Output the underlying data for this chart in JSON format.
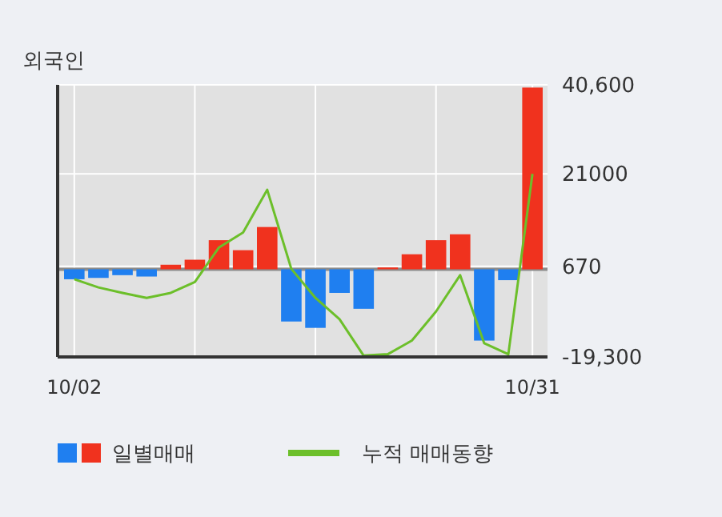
{
  "chart_data": {
    "type": "bar",
    "title": "외국인",
    "categories": [
      "10/02",
      null,
      null,
      null,
      null,
      null,
      null,
      null,
      null,
      null,
      null,
      null,
      null,
      null,
      null,
      null,
      null,
      null,
      null,
      "10/31"
    ],
    "series": [
      {
        "name": "일별매매",
        "colors": [
          "#1f7ff0",
          "#1f7ff0",
          "#1f7ff0",
          "#1f7ff0",
          "#f0321e",
          "#f0321e",
          "#f0321e",
          "#f0321e",
          "#f0321e",
          "#1f7ff0",
          "#1f7ff0",
          "#1f7ff0",
          "#1f7ff0",
          "#f0321e",
          "#f0321e",
          "#f0321e",
          "#f0321e",
          "#1f7ff0",
          "#1f7ff0",
          "#f0321e"
        ],
        "values": [
          -2200,
          -1900,
          -1300,
          -1600,
          1000,
          2100,
          6400,
          4200,
          9300,
          -11500,
          -12900,
          -5200,
          -8700,
          400,
          3300,
          6400,
          7700,
          -15700,
          -2400,
          40000
        ]
      },
      {
        "name": "누적 매매동향",
        "type": "line",
        "color": "#6cbf2a",
        "values": [
          -2200,
          -4000,
          -5200,
          -6300,
          -5200,
          -2800,
          4800,
          8100,
          17500,
          100,
          -6300,
          -11000,
          -19000,
          -18700,
          -15700,
          -9300,
          -1300,
          -16300,
          -18700,
          21000
        ]
      }
    ],
    "ylim": [
      -19300,
      40600
    ],
    "yticks": [
      {
        "value": -19300,
        "label": "-19,300"
      },
      670,
      21000,
      {
        "value": 40600,
        "label": "40,600"
      }
    ],
    "grid": true,
    "legend": "bottom"
  }
}
